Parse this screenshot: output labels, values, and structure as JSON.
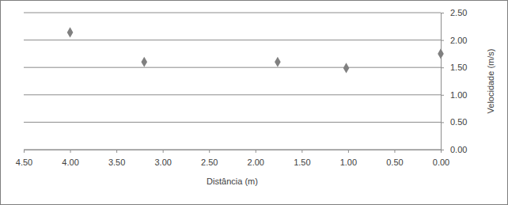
{
  "chart_data": {
    "type": "scatter",
    "x_label": "Distância (m)",
    "y_label": "Velocidade (m/s)",
    "x": [
      4.0,
      3.2,
      1.76,
      1.02,
      0.0
    ],
    "values": [
      2.14,
      1.6,
      1.6,
      1.49,
      1.75
    ],
    "color": "#808080",
    "marker": "diamond",
    "xlim": [
      4.5,
      0
    ],
    "xticks": [
      {
        "value": 4.5,
        "label": "4.50"
      },
      {
        "value": 4.0,
        "label": "4.00"
      },
      {
        "value": 3.5,
        "label": "3.50"
      },
      {
        "value": 3.0,
        "label": "3.00"
      },
      {
        "value": 2.5,
        "label": "2.50"
      },
      {
        "value": 2.0,
        "label": "2.00"
      },
      {
        "value": 1.5,
        "label": "1.50"
      },
      {
        "value": 1.0,
        "label": "1.00"
      },
      {
        "value": 0.5,
        "label": "0.50"
      },
      {
        "value": 0.0,
        "label": "0.00"
      }
    ],
    "ylim": [
      0,
      2.5
    ],
    "yticks": [
      {
        "value": 0.0,
        "label": "0.00"
      },
      {
        "value": 0.5,
        "label": "0.50"
      },
      {
        "value": 1.0,
        "label": "1.00"
      },
      {
        "value": 1.5,
        "label": "1.50"
      },
      {
        "value": 2.0,
        "label": "2.00"
      },
      {
        "value": 2.5,
        "label": "2.50"
      }
    ],
    "grid": true
  }
}
